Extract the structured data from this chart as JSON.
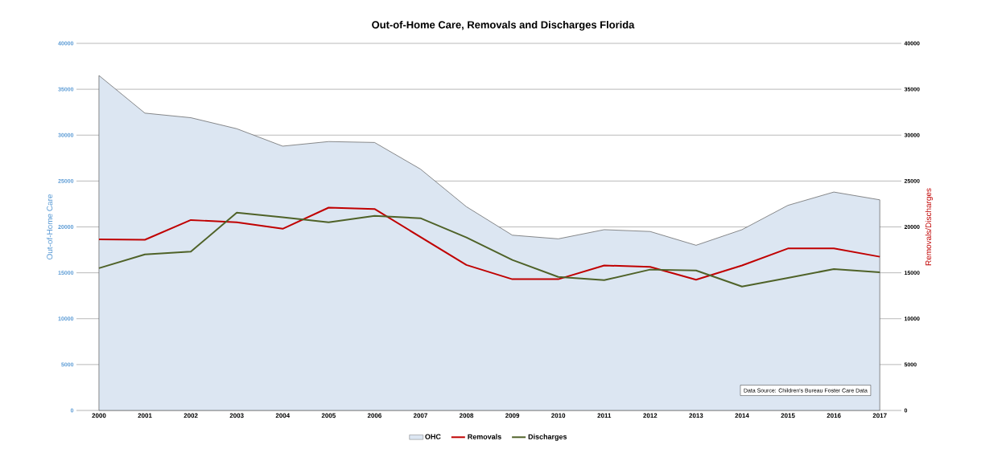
{
  "chart_data": {
    "type": "line",
    "title": "Out-of-Home  Care, Removals and Discharges Florida",
    "ylabel": "Out-of-Home Care",
    "y2label": "Removals/Discharges",
    "categories": [
      "2000",
      "2001",
      "2002",
      "2003",
      "2004",
      "2005",
      "2006",
      "2007",
      "2008",
      "2009",
      "2010",
      "2011",
      "2012",
      "2013",
      "2014",
      "2015",
      "2016",
      "2017"
    ],
    "series": [
      {
        "name": "OHC",
        "type": "area",
        "color": "#dce6f2",
        "values": [
          36500,
          32400,
          31900,
          30700,
          28800,
          29300,
          29200,
          26300,
          22200,
          19100,
          18700,
          19700,
          19500,
          18000,
          19700,
          22350,
          23800,
          22950
        ]
      },
      {
        "name": "Removals",
        "axis": "y2",
        "color": "#c00000",
        "values": [
          18650,
          18600,
          20750,
          20500,
          19800,
          22100,
          21950,
          18900,
          15850,
          14300,
          14300,
          15800,
          15650,
          14250,
          15800,
          17650,
          17650,
          16750
        ]
      },
      {
        "name": "Discharges",
        "axis": "y2",
        "color": "#4f6228",
        "values": [
          15500,
          17000,
          17300,
          21550,
          21050,
          20500,
          21200,
          20950,
          18850,
          16400,
          14550,
          14200,
          15350,
          15250,
          13500,
          14450,
          15400,
          15050
        ]
      }
    ],
    "ylim": [
      0,
      40000
    ],
    "yticks": [
      0,
      5000,
      10000,
      15000,
      20000,
      25000,
      30000,
      35000,
      40000
    ],
    "y2lim": [
      0,
      40000
    ],
    "y2ticks": [
      0,
      5000,
      10000,
      15000,
      20000,
      25000,
      30000,
      35000,
      40000
    ],
    "grid": "y",
    "legend": "bottom",
    "marker": "none",
    "annotations": [
      "Data Source: Children's Bureau Foster Care Data"
    ]
  }
}
